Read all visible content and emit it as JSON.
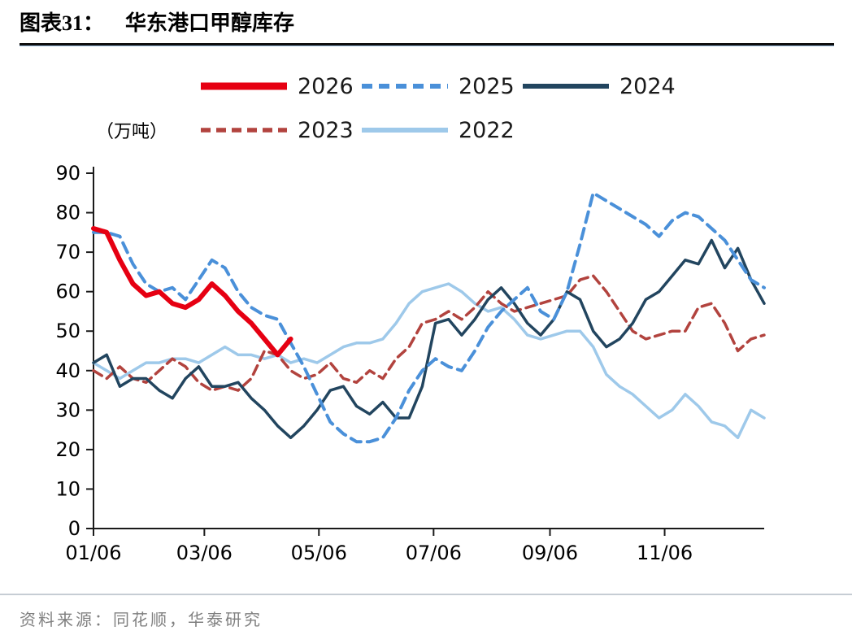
{
  "header": {
    "figure_label": "图表31：",
    "title": "华东港口甲醇库存"
  },
  "footer": {
    "source": "资料来源：同花顺，华泰研究"
  },
  "chart_data": {
    "type": "line",
    "title": "华东港口甲醇库存",
    "unit_label": "（万吨）",
    "ylabel": "万吨",
    "ylim": [
      0,
      90
    ],
    "ytick_step": 10,
    "grid": false,
    "legend_position": "top",
    "x_unit": "week_index",
    "x_total_weeks": 52,
    "xticks": [
      {
        "label": "01/06",
        "week": 0
      },
      {
        "label": "03/06",
        "week": 8.43
      },
      {
        "label": "05/06",
        "week": 17.14
      },
      {
        "label": "07/06",
        "week": 25.86
      },
      {
        "label": "09/06",
        "week": 34.71
      },
      {
        "label": "11/06",
        "week": 43.43
      }
    ],
    "legend_rows": [
      [
        "2026",
        "2025",
        "2024"
      ],
      [
        "2023",
        "2022"
      ]
    ],
    "series": [
      {
        "name": "2022",
        "color": "#9ec9ea",
        "width": 3.5,
        "legend_stroke": 6,
        "dash": null,
        "values": [
          42,
          40,
          38,
          40,
          42,
          42,
          43,
          43,
          42,
          44,
          46,
          44,
          44,
          43,
          44,
          42,
          43,
          42,
          44,
          46,
          47,
          47,
          48,
          52,
          57,
          60,
          61,
          62,
          60,
          57,
          55,
          56,
          53,
          49,
          48,
          49,
          50,
          50,
          46,
          39,
          36,
          34,
          31,
          28,
          30,
          34,
          31,
          27,
          26,
          23,
          30,
          28
        ]
      },
      {
        "name": "2023",
        "color": "#b2433e",
        "width": 3.5,
        "legend_stroke": 5.5,
        "dash": "12 7",
        "values": [
          40,
          38,
          41,
          38,
          37,
          40,
          43,
          41,
          37,
          35,
          36,
          35,
          38,
          45,
          44,
          40,
          38,
          39,
          42,
          38,
          37,
          40,
          38,
          43,
          46,
          52,
          53,
          55,
          53,
          56,
          60,
          57,
          55,
          56,
          57,
          58,
          59,
          63,
          64,
          60,
          55,
          50,
          48,
          49,
          50,
          50,
          56,
          57,
          52,
          45,
          48,
          49
        ]
      },
      {
        "name": "2024",
        "color": "#22455f",
        "width": 3.5,
        "legend_stroke": 6,
        "dash": null,
        "values": [
          42,
          44,
          36,
          38,
          38,
          35,
          33,
          38,
          41,
          36,
          36,
          37,
          33,
          30,
          26,
          23,
          26,
          30,
          35,
          36,
          31,
          29,
          32,
          28,
          28,
          36,
          52,
          53,
          49,
          53,
          58,
          61,
          57,
          52,
          49,
          53,
          60,
          58,
          50,
          46,
          48,
          52,
          58,
          60,
          64,
          68,
          67,
          73,
          66,
          71,
          63,
          57
        ]
      },
      {
        "name": "2025",
        "color": "#4a90d9",
        "width": 4,
        "legend_stroke": 6,
        "dash": "13 8",
        "values": [
          75,
          75,
          74,
          67,
          62,
          60,
          61,
          58,
          63,
          68,
          66,
          60,
          56,
          54,
          53,
          47,
          41,
          34,
          27,
          24,
          22,
          22,
          23,
          28,
          35,
          40,
          43,
          41,
          40,
          45,
          51,
          55,
          58,
          61,
          55,
          53,
          60,
          72,
          85,
          83,
          81,
          79,
          77,
          74,
          78,
          80,
          79,
          76,
          73,
          68,
          63,
          61
        ]
      },
      {
        "name": "2026",
        "color": "#e60012",
        "width": 6,
        "legend_stroke": 9,
        "dash": null,
        "values": [
          76,
          75,
          68,
          62,
          59,
          60,
          57,
          56,
          58,
          62,
          59,
          55,
          52,
          48,
          44,
          48
        ]
      }
    ]
  }
}
